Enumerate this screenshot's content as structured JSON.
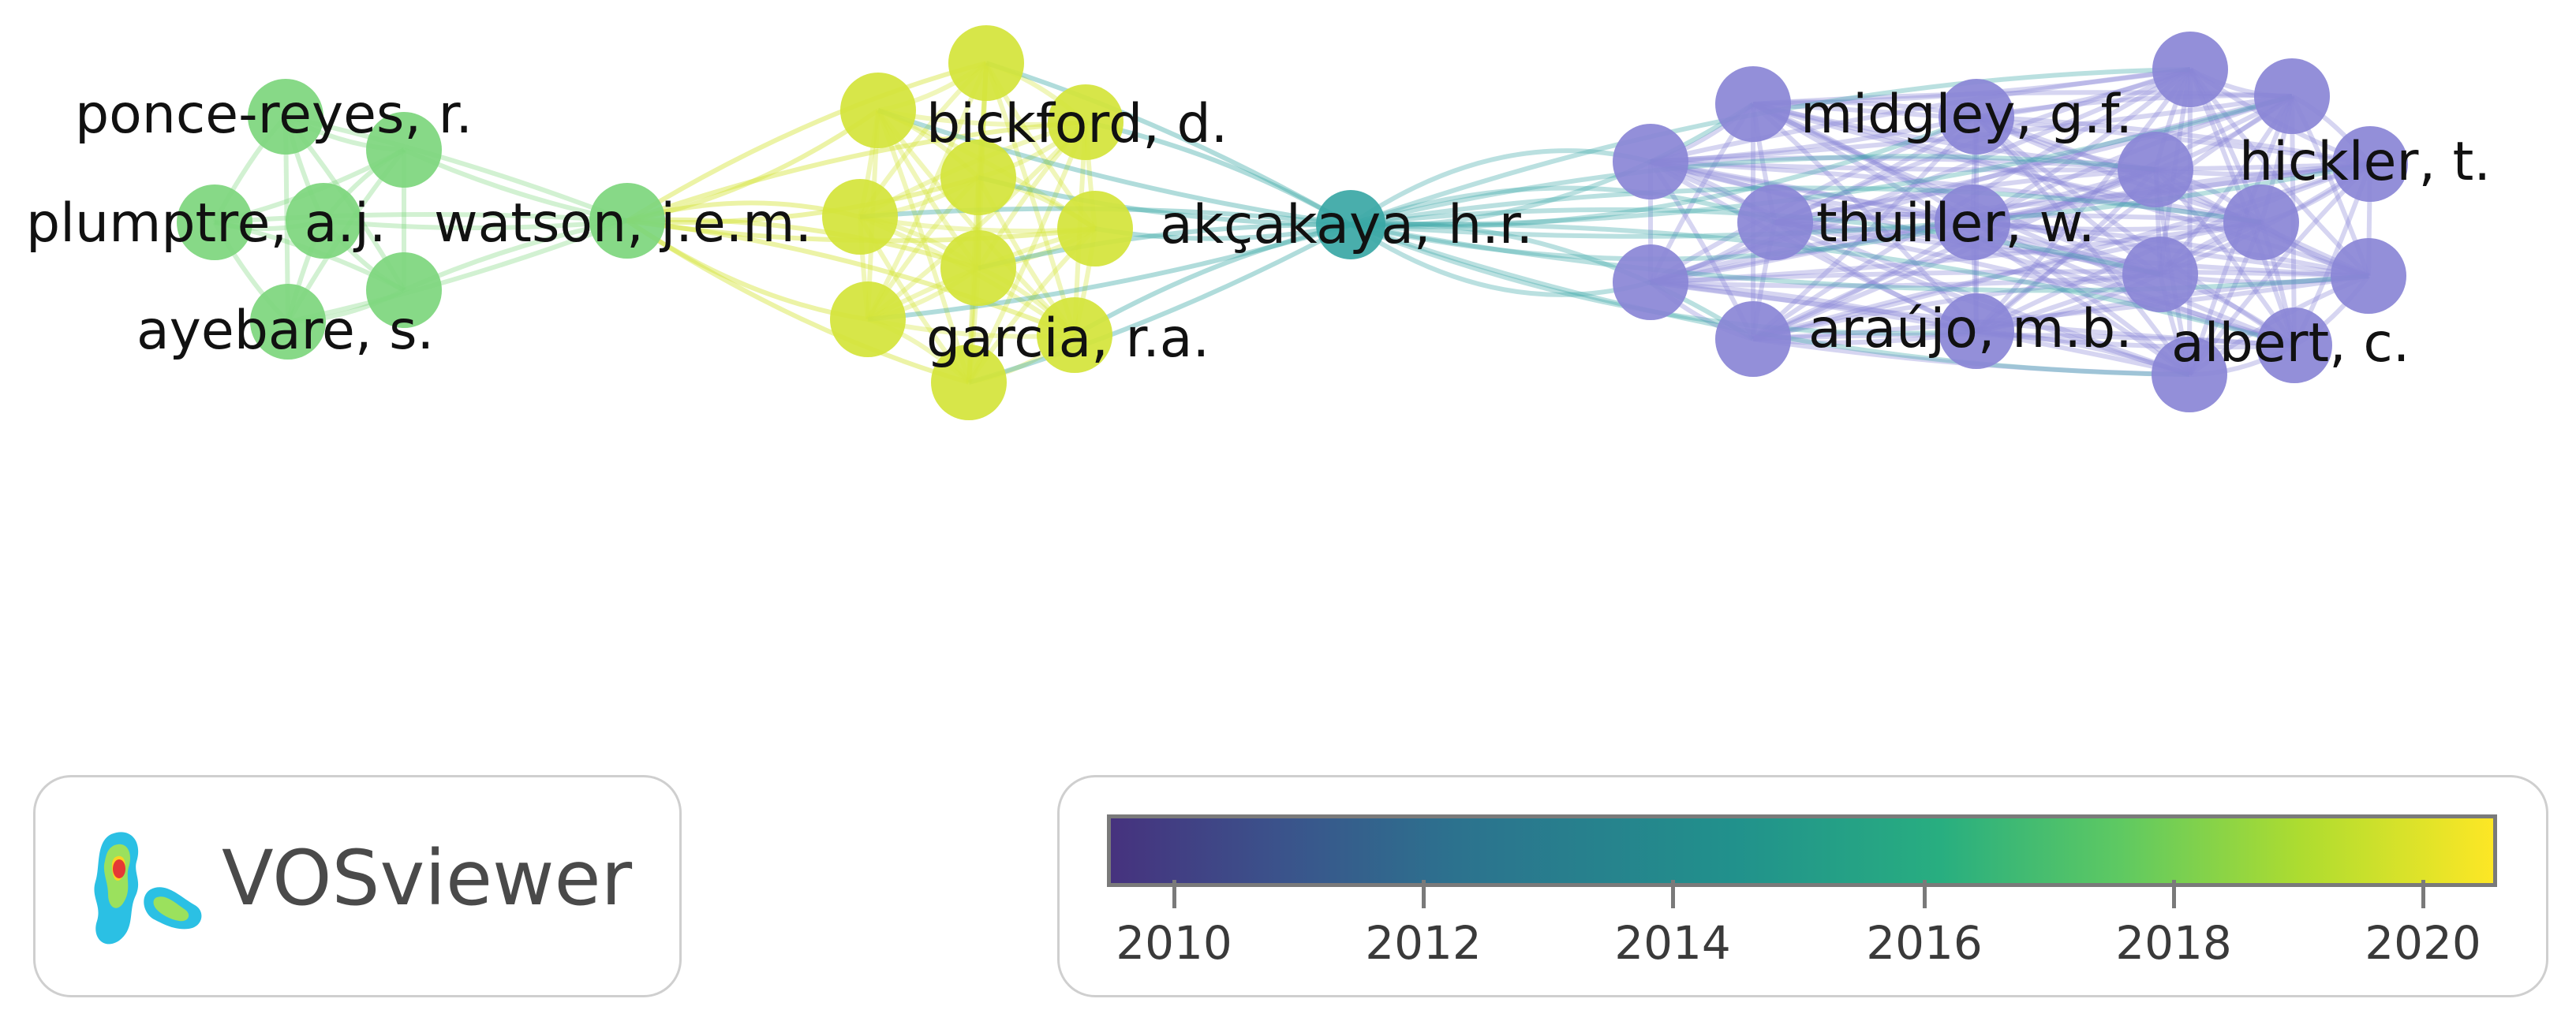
{
  "network": {
    "clusters": [
      {
        "name": "green",
        "color": "#7dd67d",
        "labels": [
          "ponce-reyes, r.",
          "plumptre, a.j.",
          "ayebare, s.",
          "watson, j.e.m."
        ]
      },
      {
        "name": "yellow",
        "color": "#d4e43a",
        "labels": [
          "bickford, d.",
          "garcia, r.a."
        ]
      },
      {
        "name": "teal",
        "color": "#3aa7a5",
        "labels": [
          "akçakaya, h.r."
        ]
      },
      {
        "name": "purple",
        "color": "#8a86d6",
        "labels": [
          "midgley, g.f.",
          "hickler, t.",
          "thuiller, w.",
          "araújo, m.b.",
          "albert, c."
        ]
      }
    ]
  },
  "logo": {
    "text": "VOSviewer"
  },
  "legend": {
    "colors": [
      "#46327e",
      "#3b528b",
      "#2c728e",
      "#21918c",
      "#28ae80",
      "#5ec962",
      "#addc30",
      "#fde725"
    ],
    "ticks": [
      "2010",
      "2012",
      "2014",
      "2016",
      "2018",
      "2020"
    ]
  }
}
